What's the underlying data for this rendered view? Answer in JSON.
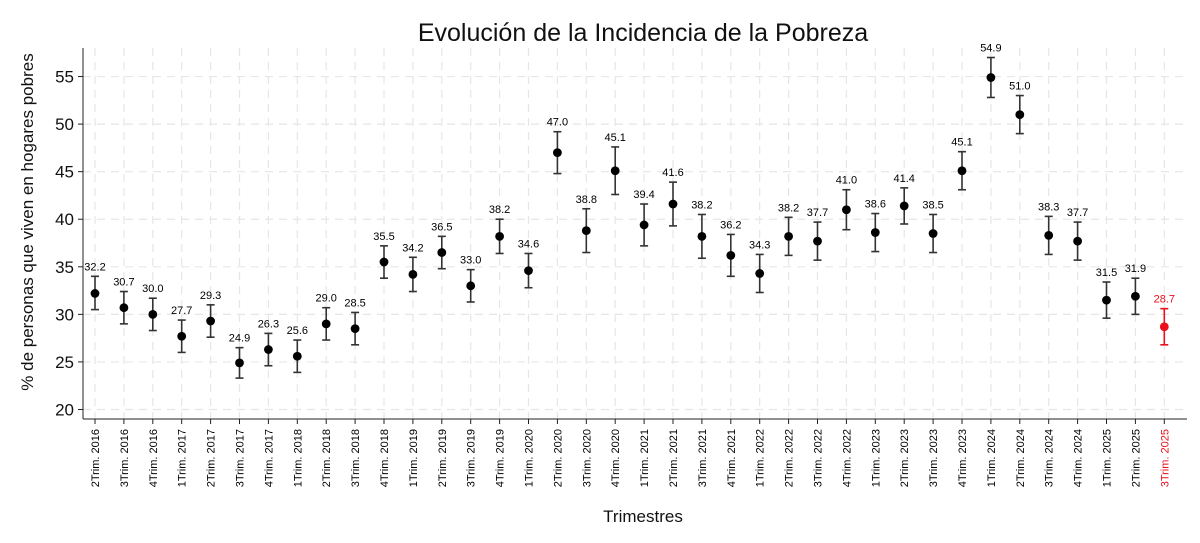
{
  "chart_data": {
    "type": "scatter",
    "title": "Evolución de la Incidencia de la Pobreza",
    "xlabel": "Trimestres",
    "ylabel": "% de personas que viven en hogares pobres",
    "ylim": [
      19,
      58
    ],
    "yticks": [
      20,
      25,
      30,
      35,
      40,
      45,
      50,
      55
    ],
    "grid": true,
    "colors": {
      "default": "#000000",
      "highlight": "#e8101a",
      "errorbar": "#333333"
    },
    "categories": [
      "2Trim. 2016",
      "3Trim. 2016",
      "4Trim. 2016",
      "1Trim. 2017",
      "2Trim. 2017",
      "3Trim. 2017",
      "4Trim. 2017",
      "1Trim. 2018",
      "2Trim. 2018",
      "3Trim. 2018",
      "4Trim. 2018",
      "1Trim. 2019",
      "2Trim. 2019",
      "3Trim. 2019",
      "4Trim. 2019",
      "1Trim. 2020",
      "2Trim. 2020",
      "3Trim. 2020",
      "4Trim. 2020",
      "1Trim. 2021",
      "2Trim. 2021",
      "3Trim. 2021",
      "4Trim. 2021",
      "1Trim. 2022",
      "2Trim. 2022",
      "3Trim. 2022",
      "4Trim. 2022",
      "1Trim. 2023",
      "2Trim. 2023",
      "3Trim. 2023",
      "4Trim. 2023",
      "1Trim. 2024",
      "2Trim. 2024",
      "3Trim. 2024",
      "4Trim. 2024",
      "1Trim. 2025",
      "2Trim. 2025",
      "3Trim. 2025"
    ],
    "values": [
      32.2,
      30.7,
      30.0,
      27.7,
      29.3,
      24.9,
      26.3,
      25.6,
      29.0,
      28.5,
      35.5,
      34.2,
      36.5,
      33.0,
      38.2,
      34.6,
      47.0,
      38.8,
      45.1,
      39.4,
      41.6,
      38.2,
      36.2,
      34.3,
      38.2,
      37.7,
      41.0,
      38.6,
      41.4,
      38.5,
      45.1,
      54.9,
      51.0,
      38.3,
      37.7,
      31.5,
      31.9,
      28.7
    ],
    "labels": [
      "32.2",
      "30.7",
      "30.0",
      "27.7",
      "29.3",
      "24.9",
      "26.3",
      "25.6",
      "29.0",
      "28.5",
      "35.5",
      "34.2",
      "36.5",
      "33.0",
      "38.2",
      "34.6",
      "47.0",
      "38.8",
      "45.1",
      "39.4",
      "41.6",
      "38.2",
      "36.2",
      "34.3",
      "38.2",
      "37.7",
      "41.0",
      "38.6",
      "41.4",
      "38.5",
      "45.1",
      "54.9",
      "51.0",
      "38.3",
      "37.7",
      "31.5",
      "31.9",
      "28.7"
    ],
    "error_low": [
      30.5,
      29.0,
      28.3,
      26.0,
      27.6,
      23.3,
      24.6,
      23.9,
      27.3,
      26.8,
      33.8,
      32.4,
      34.8,
      31.3,
      36.4,
      32.8,
      44.8,
      36.5,
      42.6,
      37.2,
      39.3,
      35.9,
      34.0,
      32.3,
      36.2,
      35.7,
      38.9,
      36.6,
      39.5,
      36.5,
      43.1,
      52.8,
      49.0,
      36.3,
      35.7,
      29.6,
      30.0,
      26.8
    ],
    "error_high": [
      34.0,
      32.4,
      31.7,
      29.4,
      31.0,
      26.5,
      28.0,
      27.3,
      30.7,
      30.2,
      37.2,
      36.0,
      38.2,
      34.7,
      40.0,
      36.4,
      49.2,
      41.1,
      47.6,
      41.6,
      43.9,
      40.5,
      38.4,
      36.3,
      40.2,
      39.7,
      43.1,
      40.6,
      43.3,
      40.5,
      47.1,
      57.0,
      53.0,
      40.3,
      39.7,
      33.4,
      33.8,
      30.6
    ],
    "highlight_index": 37
  }
}
